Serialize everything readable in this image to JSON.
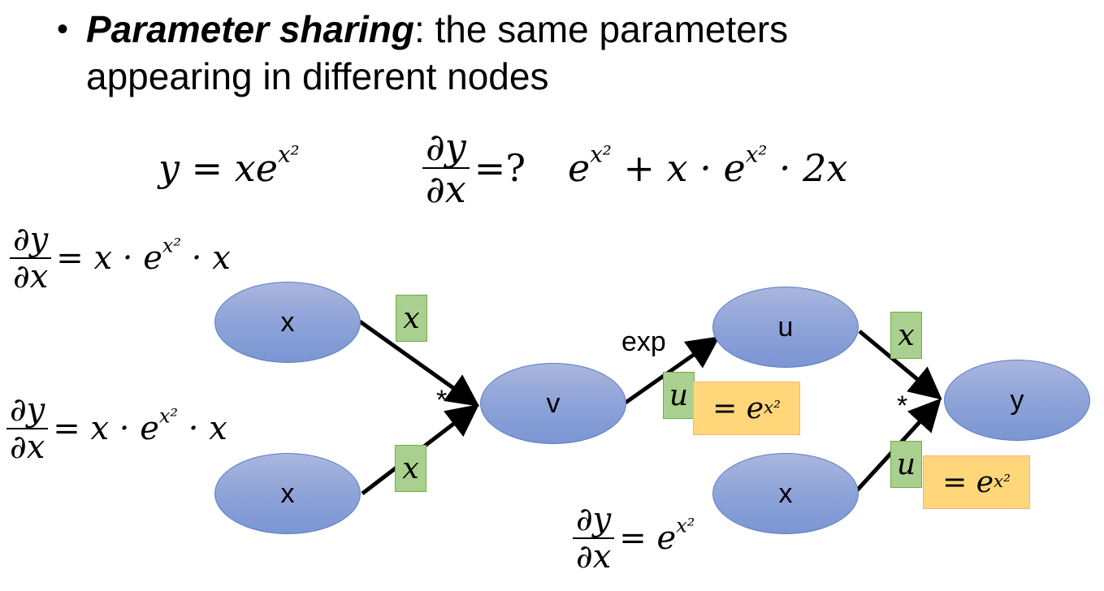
{
  "bullet": {
    "term": "Parameter sharing",
    "rest_line1": ": the same parameters",
    "line2": "appearing in different nodes"
  },
  "equations": {
    "y_def": "y = xe",
    "y_def_sup": "x²",
    "dy": "∂y",
    "dx": "∂x",
    "eq_q": "=?",
    "result_e1": "e",
    "result_sup1": "x²",
    "result_mid": " + x · e",
    "result_sup2": "x²",
    "result_end": " · 2x"
  },
  "grad_top_left": {
    "num": "∂y",
    "den": "∂x",
    "pre": "= x · e",
    "sup": "x²",
    "post": " · x"
  },
  "grad_mid_left": {
    "num": "∂y",
    "den": "∂x",
    "pre": "= x · e",
    "sup": "x²",
    "post": " · x"
  },
  "grad_bottom": {
    "num": "∂y",
    "den": "∂x",
    "pre": "= e",
    "sup": "x²"
  },
  "nodes": {
    "x_top": "x",
    "x_bottom": "x",
    "v": "v",
    "u": "u",
    "x_right": "x",
    "y": "y"
  },
  "edge_labels": {
    "x_top_to_v": "x",
    "x_bottom_to_v": "x",
    "v_to_u": "u",
    "u_to_y": "x",
    "x_right_to_y": "u"
  },
  "value_boxes": {
    "v_to_u": {
      "pre": "= e",
      "sup": "x²"
    },
    "x_right_to_y": {
      "pre": "= e",
      "sup": "x²"
    }
  },
  "op_labels": {
    "mult_v": "*",
    "exp_u": "exp",
    "mult_y": "*"
  },
  "colors": {
    "node_fill": "#8ea3d8",
    "node_border": "#5b7cc4",
    "green_box": "#a9d08e",
    "orange_box": "#ffd67a"
  }
}
